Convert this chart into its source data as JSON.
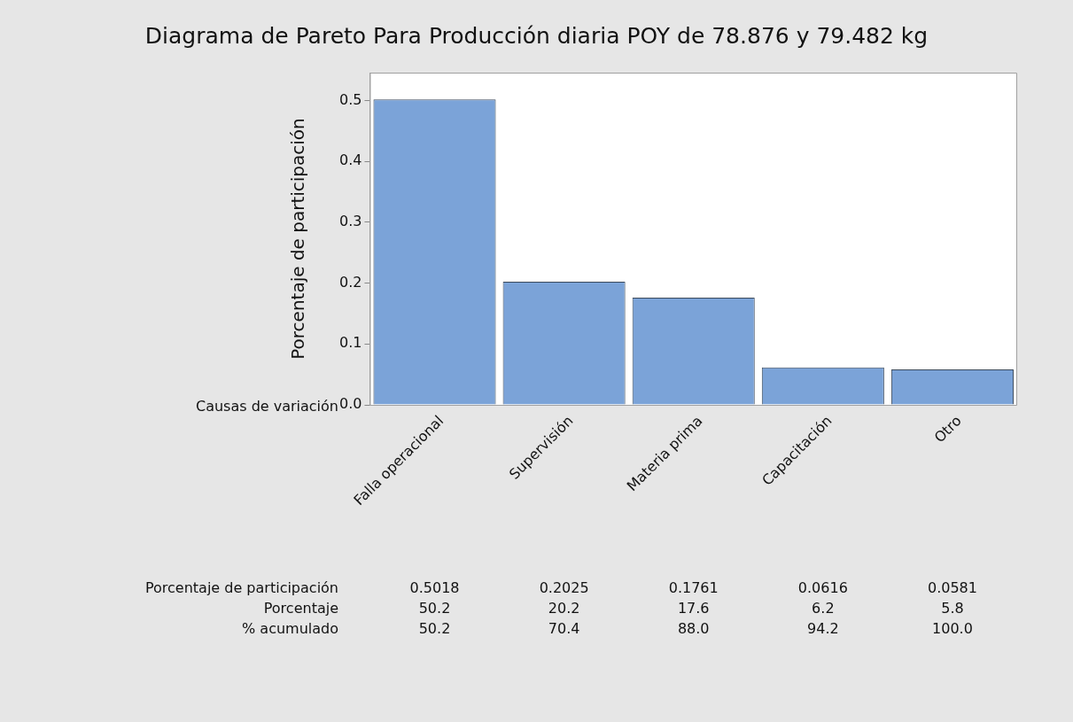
{
  "chart_data": {
    "type": "bar",
    "title": "Diagrama de Pareto Para Producción diaria POY de 78.876 y 79.482 kg",
    "ylabel": "Porcentaje de participación",
    "xlabel": "Causas de variación",
    "categories": [
      "Falla operacional",
      "Supervisión",
      "Materia prima",
      "Capacitación",
      "Otro"
    ],
    "values": [
      0.5018,
      0.2025,
      0.1761,
      0.0616,
      0.0581
    ],
    "color": "#7ba3d8",
    "ylim": [
      0,
      0.546
    ],
    "yticks": [
      {
        "value": 0,
        "label": "0.0"
      },
      0.1,
      0.2,
      0.3,
      0.4,
      0.5
    ],
    "grid": false,
    "legend": false,
    "data_labels": true,
    "annotations": [
      "Porcentaje de participación",
      "Porcentaje",
      "50.2",
      "20.2",
      "17.6",
      "6.2",
      "5.8",
      "% acumulado",
      "50.2",
      "70.4",
      "88.0",
      "94.2",
      "100.0"
    ]
  }
}
